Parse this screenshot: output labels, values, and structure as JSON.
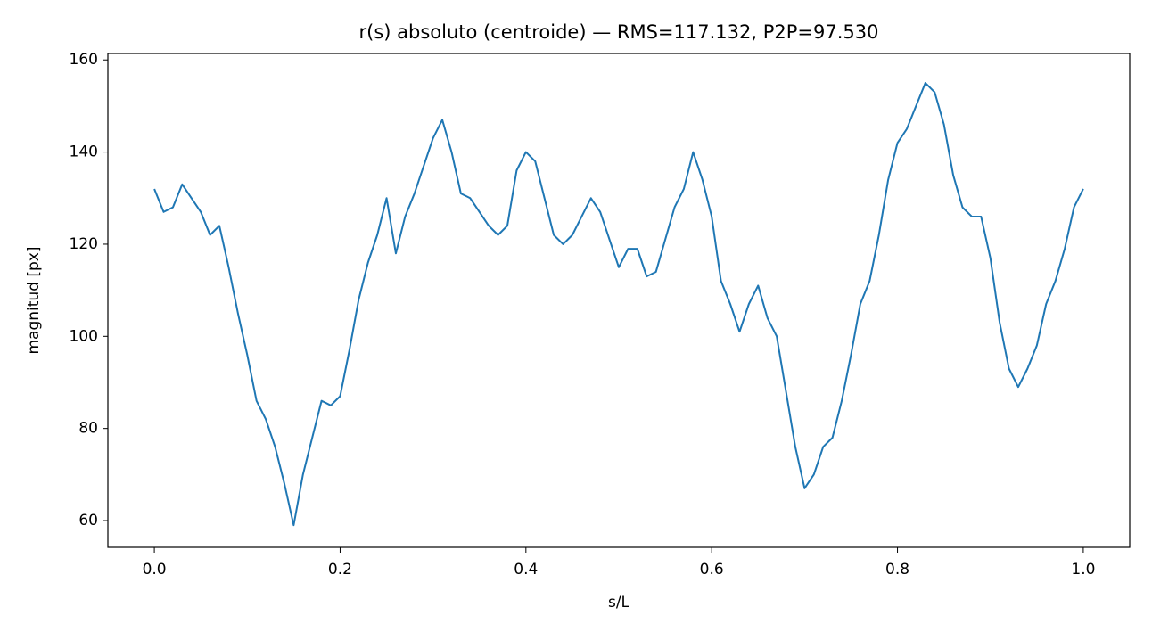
{
  "chart_data": {
    "type": "line",
    "title": "r(s) absoluto (centroide) — RMS=117.132, P2P=97.530",
    "xlabel": "s/L",
    "ylabel": "magnitud [px]",
    "x": [
      0,
      0.01,
      0.02,
      0.03,
      0.04,
      0.05,
      0.06,
      0.07,
      0.08,
      0.09,
      0.1,
      0.11,
      0.12,
      0.13,
      0.14,
      0.15,
      0.16,
      0.17,
      0.18,
      0.19,
      0.2,
      0.21,
      0.22,
      0.23,
      0.24,
      0.25,
      0.26,
      0.27,
      0.28,
      0.29,
      0.3,
      0.31,
      0.32,
      0.33,
      0.34,
      0.35,
      0.36,
      0.37,
      0.38,
      0.39,
      0.4,
      0.41,
      0.42,
      0.43,
      0.44,
      0.45,
      0.46,
      0.47,
      0.48,
      0.49,
      0.5,
      0.51,
      0.52,
      0.53,
      0.54,
      0.55,
      0.56,
      0.57,
      0.58,
      0.59,
      0.6,
      0.61,
      0.62,
      0.63,
      0.64,
      0.65,
      0.66,
      0.67,
      0.68,
      0.69,
      0.7,
      0.71,
      0.72,
      0.73,
      0.74,
      0.75,
      0.76,
      0.77,
      0.78,
      0.79,
      0.8,
      0.81,
      0.82,
      0.83,
      0.84,
      0.85,
      0.86,
      0.87,
      0.88,
      0.89,
      0.9,
      0.91,
      0.92,
      0.93,
      0.94,
      0.95,
      0.96,
      0.97,
      0.98,
      0.99,
      1
    ],
    "series": [
      {
        "name": "r(s)",
        "color": "#1f77b4",
        "values": [
          132,
          127,
          128,
          133,
          130,
          127,
          122,
          124,
          115,
          105,
          96,
          86,
          82,
          76,
          68,
          59,
          70,
          78,
          86,
          85,
          87,
          97,
          108,
          116,
          122,
          130,
          118,
          126,
          131,
          137,
          143,
          147,
          140,
          131,
          130,
          127,
          124,
          122,
          124,
          136,
          140,
          138,
          130,
          122,
          120,
          122,
          126,
          130,
          127,
          121,
          115,
          119,
          119,
          113,
          114,
          121,
          128,
          132,
          140,
          134,
          126,
          112,
          107,
          101,
          107,
          111,
          104,
          100,
          88,
          76,
          67,
          70,
          76,
          78,
          86,
          96,
          107,
          112,
          122,
          134,
          142,
          145,
          150,
          155,
          153,
          146,
          135,
          128,
          126,
          126,
          117,
          103,
          93,
          89,
          93,
          98,
          107,
          112,
          119,
          128,
          132
        ]
      }
    ],
    "xlim": [
      -0.05,
      1.05
    ],
    "ylim": [
      54.2,
      161.4
    ],
    "xticks": [
      {
        "value": 0,
        "label": "0.0"
      },
      0.2,
      0.4,
      0.6,
      0.8,
      {
        "value": 1,
        "label": "1.0"
      }
    ],
    "yticks": [
      60,
      80,
      100,
      120,
      140,
      160
    ],
    "grid": false
  }
}
